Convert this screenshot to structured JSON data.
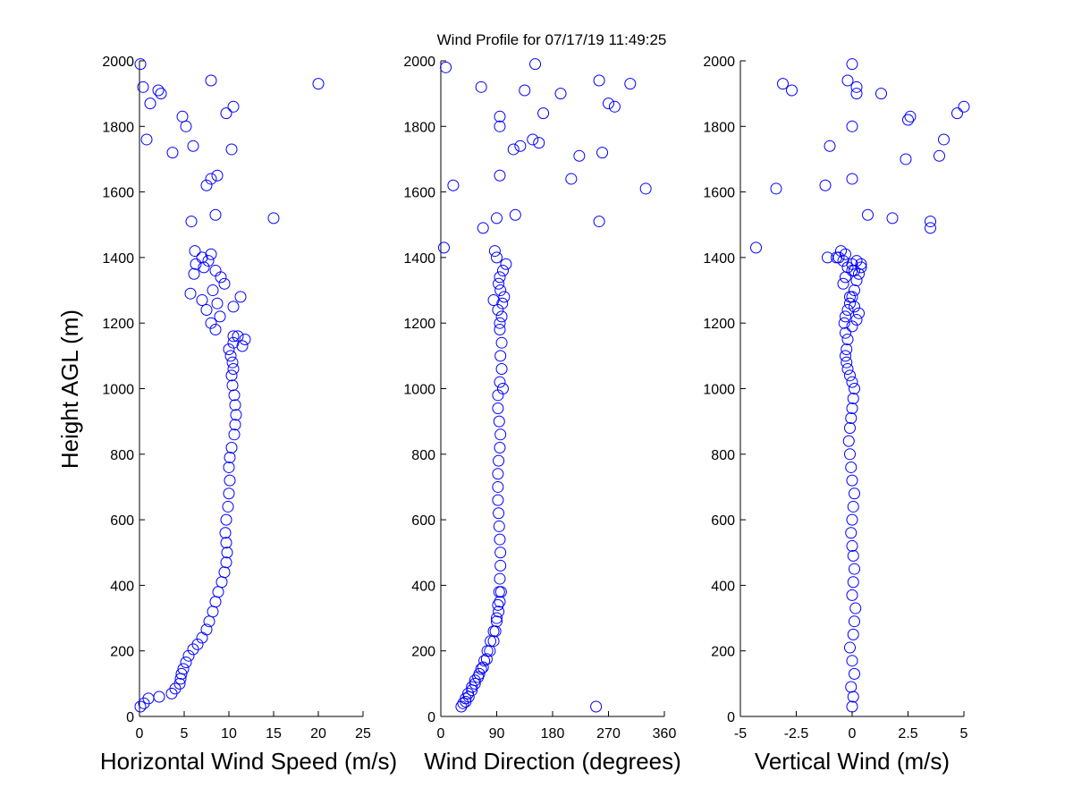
{
  "chart_data": {
    "type": "scatter",
    "title": "Wind Profile for  07/17/19 11:49:25",
    "ylabel": "Height AGL (m)",
    "ylim": [
      0,
      2000
    ],
    "yticks": [
      "0",
      "200",
      "400",
      "600",
      "800",
      "1000",
      "1200",
      "1400",
      "1600",
      "1800",
      "2000"
    ],
    "marker_color": "#0000ff",
    "marker": "open-circle",
    "grid": false,
    "panels": [
      {
        "xlabel": "Horizontal Wind Speed (m/s)",
        "xlim": [
          0,
          25
        ],
        "xticks": [
          "0",
          "5",
          "10",
          "15",
          "20",
          "25"
        ],
        "tickvals": [
          0,
          5,
          10,
          15,
          20,
          25
        ],
        "x": [
          0.1,
          0.5,
          1.0,
          2.2,
          3.6,
          4.0,
          4.5,
          4.6,
          4.7,
          4.9,
          5.2,
          5.5,
          6.0,
          6.5,
          7.0,
          7.5,
          7.8,
          8.2,
          8.5,
          8.8,
          9.2,
          9.5,
          9.7,
          9.8,
          9.7,
          9.6,
          9.7,
          9.9,
          10.0,
          10.1,
          10.0,
          10.1,
          10.3,
          10.6,
          10.7,
          10.8,
          10.7,
          10.6,
          10.4,
          10.3,
          10.5,
          10.4,
          10.2,
          10.0,
          10.5,
          11.0,
          11.5,
          11.8,
          10.5,
          8.5,
          8.0,
          9.0,
          7.5,
          8.7,
          10.5,
          7.0,
          11.3,
          5.7,
          8.2,
          9.5,
          9.1,
          8.5,
          6.3,
          7.0,
          7.7,
          7.2,
          6.2,
          8.0,
          6.1,
          5.8,
          15.0,
          8.5,
          7.5,
          8.0,
          8.7,
          3.7,
          10.3,
          6.0,
          0.8,
          5.2,
          4.8,
          9.7,
          10.5,
          1.2,
          2.4,
          0.4,
          2.1,
          8.0,
          20.0,
          0.1
        ],
        "y": [
          30,
          40,
          55,
          60,
          70,
          85,
          100,
          115,
          130,
          145,
          165,
          185,
          205,
          220,
          240,
          265,
          290,
          320,
          350,
          380,
          410,
          440,
          470,
          500,
          530,
          560,
          600,
          640,
          680,
          720,
          760,
          790,
          820,
          860,
          890,
          920,
          950,
          980,
          1010,
          1040,
          1060,
          1080,
          1100,
          1120,
          1140,
          1160,
          1130,
          1150,
          1160,
          1180,
          1200,
          1220,
          1240,
          1260,
          1250,
          1270,
          1280,
          1290,
          1300,
          1320,
          1340,
          1360,
          1380,
          1400,
          1390,
          1370,
          1420,
          1410,
          1350,
          1510,
          1520,
          1530,
          1620,
          1640,
          1650,
          1720,
          1730,
          1740,
          1760,
          1800,
          1830,
          1840,
          1860,
          1870,
          1900,
          1920,
          1910,
          1940,
          1930,
          1990
        ]
      },
      {
        "xlabel": "Wind Direction (degrees)",
        "xlim": [
          0,
          360
        ],
        "xticks": [
          "0",
          "90",
          "180",
          "270",
          "360"
        ],
        "tickvals": [
          0,
          90,
          180,
          270,
          360
        ],
        "x": [
          33,
          36,
          40,
          44,
          50,
          55,
          62,
          68,
          74,
          79,
          85,
          88,
          90,
          92,
          94,
          95,
          96,
          96,
          95,
          94,
          93,
          92,
          92,
          92,
          93,
          95,
          96,
          94,
          92,
          92,
          95,
          98,
          96,
          98,
          95,
          250,
          40,
          45,
          50,
          55,
          60,
          65,
          70,
          75,
          80,
          85,
          90,
          93,
          95,
          97,
          100,
          95,
          98,
          92,
          99,
          102,
          96,
          93,
          95,
          100,
          105,
          90,
          87,
          5,
          85,
          255,
          68,
          90,
          120,
          260,
          20,
          210,
          330,
          95,
          223,
          158,
          128,
          117,
          148,
          165,
          95,
          95,
          270,
          280,
          193,
          65,
          135,
          305,
          255,
          152,
          8
        ],
        "y": [
          30,
          40,
          55,
          70,
          90,
          110,
          130,
          150,
          175,
          200,
          230,
          260,
          300,
          340,
          380,
          420,
          460,
          500,
          540,
          580,
          620,
          660,
          700,
          740,
          780,
          820,
          860,
          900,
          940,
          980,
          1020,
          1060,
          1100,
          1140,
          1180,
          30,
          45,
          60,
          80,
          100,
          120,
          145,
          170,
          200,
          230,
          260,
          290,
          320,
          350,
          380,
          1000,
          1200,
          1220,
          1240,
          1260,
          1280,
          1300,
          1320,
          1340,
          1360,
          1380,
          1400,
          1420,
          1430,
          1270,
          1510,
          1490,
          1520,
          1530,
          1720,
          1620,
          1640,
          1610,
          1650,
          1710,
          1750,
          1740,
          1730,
          1760,
          1840,
          1800,
          1830,
          1870,
          1860,
          1900,
          1920,
          1910,
          1930,
          1940,
          1990,
          1980
        ]
      },
      {
        "xlabel": "Vertical Wind (m/s)",
        "xlim": [
          -5,
          5
        ],
        "xticks": [
          "-5",
          "-2.5",
          "0",
          "2.5",
          "5"
        ],
        "tickvals": [
          -5,
          -2.5,
          0,
          2.5,
          5
        ],
        "x": [
          0,
          0.05,
          -0.05,
          0.1,
          0,
          -0.1,
          0.05,
          0.1,
          0.15,
          0,
          0.05,
          0.1,
          0.05,
          0,
          -0.05,
          0,
          0.05,
          0.1,
          0,
          -0.05,
          -0.1,
          -0.15,
          -0.1,
          -0.05,
          0,
          0.05,
          0.1,
          0,
          -0.1,
          -0.2,
          -0.25,
          -0.3,
          -0.25,
          -0.2,
          -0.3,
          -0.35,
          -0.3,
          -0.2,
          -0.1,
          0,
          0.1,
          0.2,
          0.3,
          0.4,
          0.2,
          0,
          -0.2,
          -0.4,
          -0.3,
          -0.1,
          0.1,
          0.3,
          0.2,
          0,
          -0.5,
          -0.6,
          -0.4,
          -0.3,
          0.4,
          -0.7,
          0,
          0.1,
          -1.1,
          -4.3,
          3.5,
          3.5,
          0.7,
          1.8,
          -3.4,
          -1.2,
          0,
          2.4,
          3.9,
          -1.0,
          4.1,
          0,
          2.6,
          2.5,
          4.7,
          5.0,
          0.2,
          -2.7,
          1.3,
          -3.1,
          0.2,
          -0.2,
          0
        ],
        "y": [
          30,
          60,
          90,
          130,
          170,
          210,
          250,
          290,
          330,
          370,
          410,
          450,
          490,
          520,
          560,
          600,
          640,
          680,
          720,
          760,
          800,
          840,
          880,
          910,
          940,
          970,
          1000,
          1020,
          1040,
          1060,
          1080,
          1100,
          1120,
          1150,
          1170,
          1200,
          1220,
          1240,
          1260,
          1280,
          1300,
          1330,
          1350,
          1370,
          1390,
          1380,
          1370,
          1320,
          1340,
          1280,
          1250,
          1230,
          1210,
          1190,
          1420,
          1400,
          1390,
          1410,
          1380,
          1400,
          1360,
          1360,
          1400,
          1430,
          1510,
          1490,
          1530,
          1520,
          1610,
          1620,
          1640,
          1700,
          1710,
          1740,
          1760,
          1800,
          1830,
          1820,
          1840,
          1860,
          1900,
          1910,
          1900,
          1930,
          1920,
          1940,
          1990
        ]
      }
    ]
  }
}
